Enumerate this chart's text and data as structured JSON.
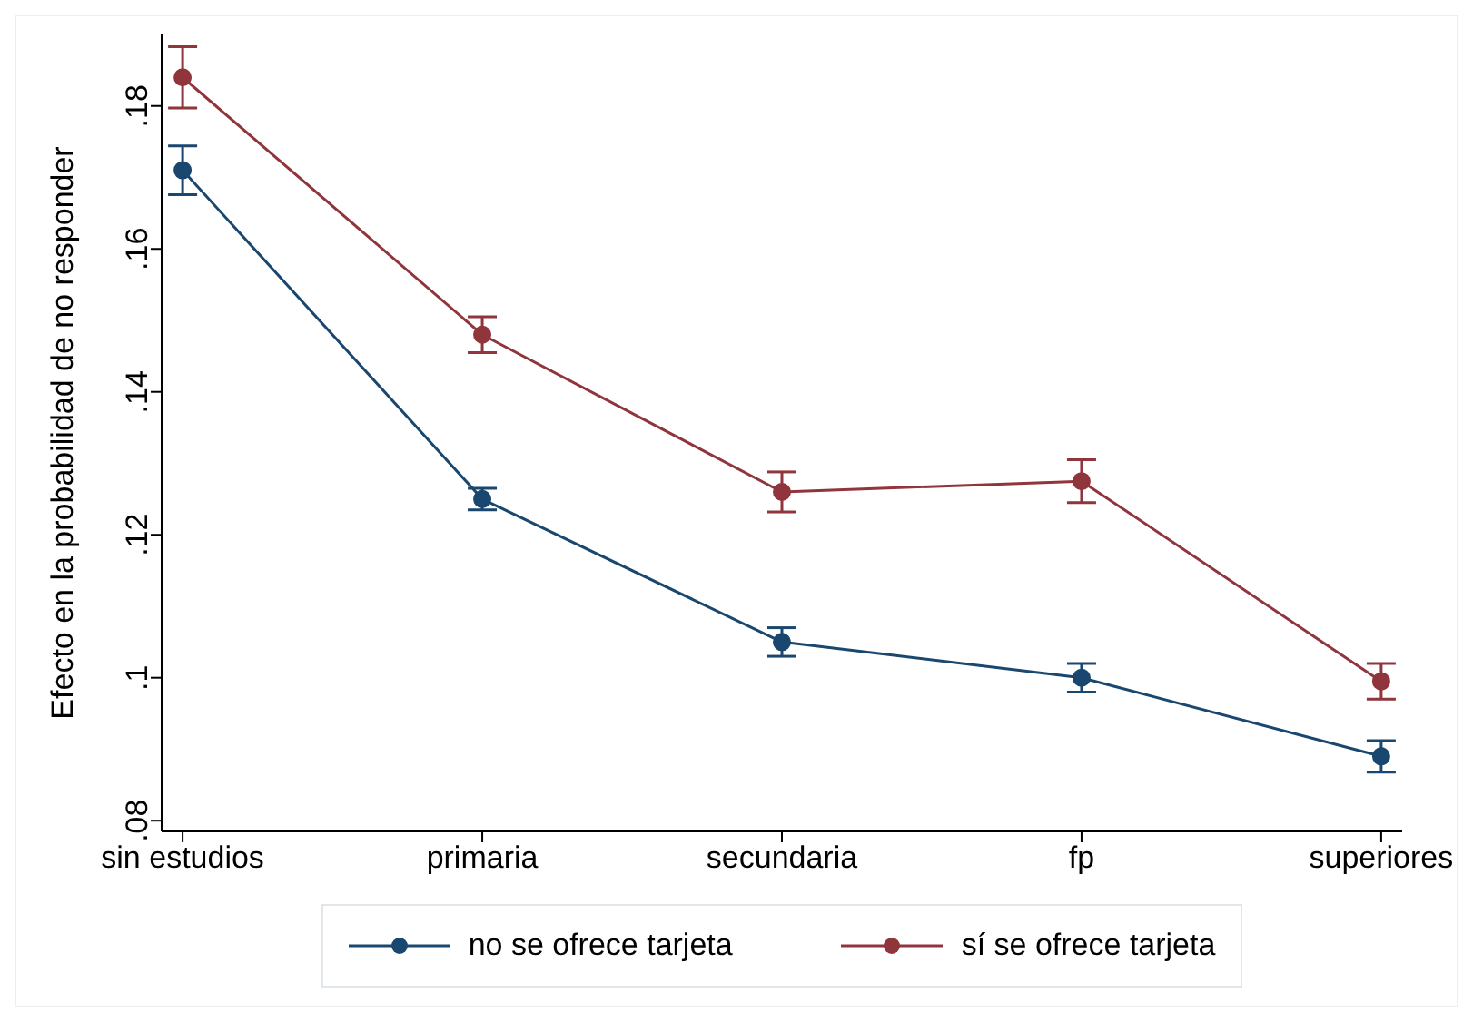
{
  "chart_data": {
    "type": "line",
    "ylabel": "Efecto en la probabilidad de no responder",
    "categories": [
      "sin estudios",
      "primaria",
      "secundaria",
      "fp",
      "superiores"
    ],
    "series": [
      {
        "name": "no se ofrece tarjeta",
        "color": "#1a476f",
        "values": [
          0.171,
          0.125,
          0.105,
          0.1,
          0.089
        ],
        "errors": [
          0.0034,
          0.0015,
          0.002,
          0.002,
          0.0022
        ]
      },
      {
        "name": "sí se ofrece tarjeta",
        "color": "#90353b",
        "values": [
          0.184,
          0.148,
          0.126,
          0.1275,
          0.0995
        ],
        "errors": [
          0.0043,
          0.0025,
          0.0028,
          0.003,
          0.0025
        ]
      }
    ],
    "ylim": [
      0.0785,
      0.19
    ],
    "yticks": [
      {
        "value": 0.08,
        "label": ".08"
      },
      {
        "value": 0.1,
        "label": ".1"
      },
      {
        "value": 0.12,
        "label": ".12"
      },
      {
        "value": 0.14,
        "label": ".14"
      },
      {
        "value": 0.16,
        "label": ".16"
      },
      {
        "value": 0.18,
        "label": ".18"
      }
    ],
    "marker": "circle",
    "line_style": "solid",
    "legend": "bottom"
  }
}
